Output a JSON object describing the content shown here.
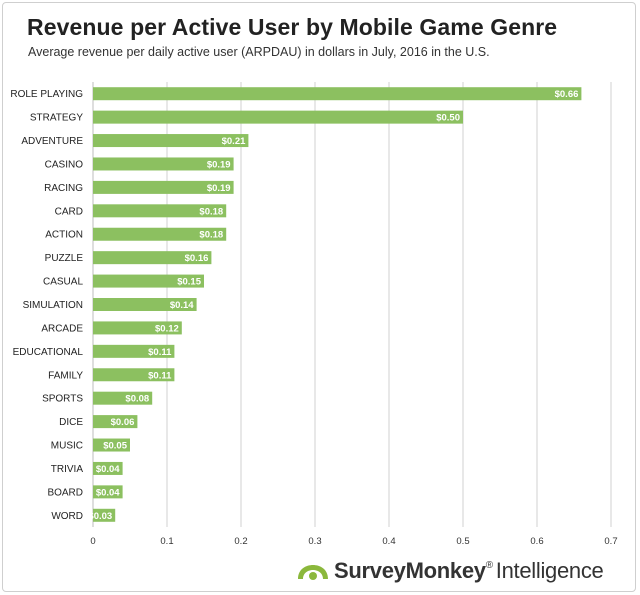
{
  "chart_data": {
    "type": "bar",
    "orientation": "horizontal",
    "title": "Revenue per Active User by Mobile Game Genre",
    "subtitle": "Average revenue per daily active user (ARPDAU) in dollars in July, 2016 in the U.S.",
    "categories": [
      "ROLE PLAYING",
      "STRATEGY",
      "ADVENTURE",
      "CASINO",
      "RACING",
      "CARD",
      "ACTION",
      "PUZZLE",
      "CASUAL",
      "SIMULATION",
      "ARCADE",
      "EDUCATIONAL",
      "FAMILY",
      "SPORTS",
      "DICE",
      "MUSIC",
      "TRIVIA",
      "BOARD",
      "WORD"
    ],
    "values": [
      0.66,
      0.5,
      0.21,
      0.19,
      0.19,
      0.18,
      0.18,
      0.16,
      0.15,
      0.14,
      0.12,
      0.11,
      0.11,
      0.08,
      0.06,
      0.05,
      0.04,
      0.04,
      0.03
    ],
    "value_labels": [
      "$0.66",
      "$0.50",
      "$0.21",
      "$0.19",
      "$0.19",
      "$0.18",
      "$0.18",
      "$0.16",
      "$0.15",
      "$0.14",
      "$0.12",
      "$0.11",
      "$0.11",
      "$0.08",
      "$0.06",
      "$0.05",
      "$0.04",
      "$0.04",
      "$0.03"
    ],
    "xlim": [
      0,
      0.7
    ],
    "xticks": [
      "0",
      "0.1",
      "0.2",
      "0.3",
      "0.4",
      "0.5",
      "0.6",
      "0.7"
    ],
    "xlabel": "",
    "ylabel": "",
    "grid": true,
    "bar_color": "#8cc060",
    "grid_color": "#d0d0d0"
  },
  "brand": {
    "name": "SurveyMonkey",
    "trademark": "®",
    "sub": "Intelligence",
    "icon": "surveymonkey-logo-icon",
    "icon_color": "#8bb83c"
  }
}
